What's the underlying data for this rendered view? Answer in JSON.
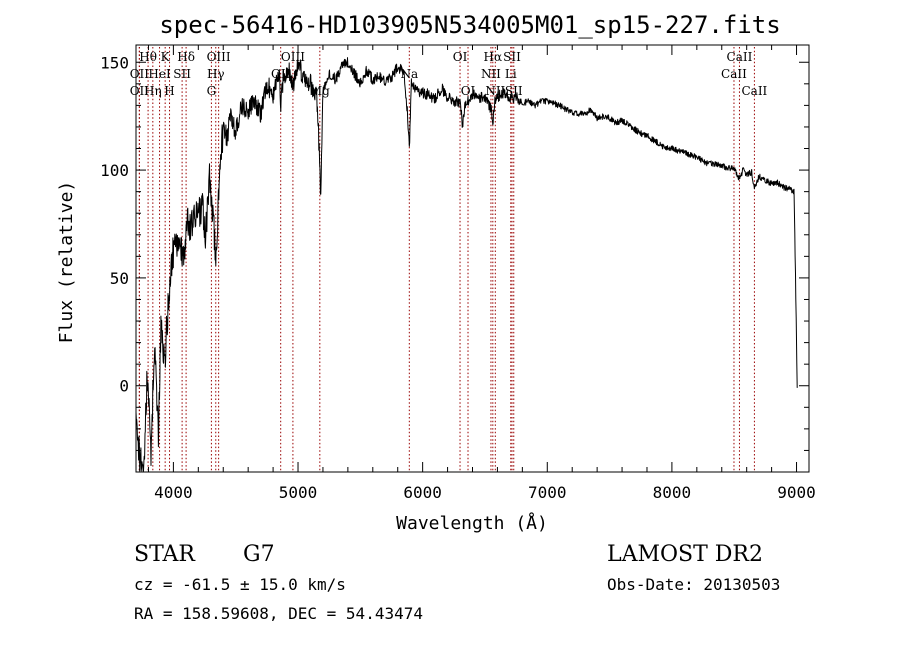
{
  "title": "spec-56416-HD103905N534005M01_sp15-227.fits",
  "chart_data": {
    "type": "line",
    "title": "spec-56416-HD103905N534005M01_sp15-227.fits",
    "xlabel": "Wavelength (Å)",
    "ylabel": "Flux (relative)",
    "xlim": [
      3700,
      9100
    ],
    "ylim": [
      -40,
      158
    ],
    "xticks": [
      4000,
      5000,
      6000,
      7000,
      8000,
      9000
    ],
    "yticks": [
      0,
      50,
      100,
      150
    ],
    "grid": false,
    "series": [
      {
        "x": [
          3700,
          3730,
          3760,
          3790,
          3820,
          3850,
          3880,
          3900,
          3930,
          3960,
          3990,
          4020,
          4050,
          4080,
          4110,
          4140,
          4170,
          4200,
          4230,
          4260,
          4290,
          4320,
          4340,
          4370,
          4400,
          4430,
          4460,
          4500,
          4550,
          4600,
          4650,
          4700,
          4750,
          4800,
          4850,
          4862,
          4880,
          4920,
          4960,
          5000,
          5050,
          5100,
          5150,
          5170,
          5183,
          5200,
          5250,
          5300,
          5350,
          5400,
          5450,
          5500,
          5550,
          5600,
          5650,
          5700,
          5750,
          5800,
          5850,
          5880,
          5893,
          5910,
          5950,
          6000,
          6050,
          6100,
          6150,
          6200,
          6250,
          6300,
          6320,
          6340,
          6400,
          6450,
          6500,
          6550,
          6563,
          6580,
          6600,
          6650,
          6700,
          6750,
          6800,
          6850,
          6900,
          6950,
          7000,
          7050,
          7100,
          7150,
          7200,
          7250,
          7300,
          7350,
          7400,
          7450,
          7500,
          7550,
          7600,
          7650,
          7700,
          7750,
          7800,
          7850,
          7900,
          7950,
          8000,
          8050,
          8100,
          8150,
          8200,
          8250,
          8300,
          8350,
          8400,
          8450,
          8498,
          8520,
          8542,
          8570,
          8600,
          8640,
          8662,
          8700,
          8750,
          8800,
          8850,
          8900,
          8950,
          8980,
          9000,
          9005
        ],
        "y": [
          -10,
          -35,
          -40,
          5,
          -30,
          20,
          -25,
          30,
          10,
          40,
          60,
          65,
          70,
          58,
          75,
          72,
          80,
          78,
          85,
          70,
          95,
          80,
          55,
          100,
          120,
          115,
          125,
          118,
          130,
          128,
          132,
          126,
          140,
          135,
          145,
          130,
          142,
          148,
          138,
          150,
          142,
          140,
          135,
          110,
          85,
          138,
          145,
          142,
          148,
          150,
          145,
          140,
          146,
          142,
          144,
          140,
          143,
          148,
          146,
          125,
          110,
          140,
          137,
          136,
          135,
          133,
          138,
          134,
          131,
          132,
          120,
          130,
          135,
          134,
          133,
          128,
          122,
          132,
          134,
          136,
          133,
          134,
          131,
          132,
          130,
          132,
          132,
          131,
          130,
          128,
          127,
          126,
          126,
          128,
          124,
          125,
          124,
          122,
          123,
          121,
          119,
          117,
          116,
          114,
          112,
          110,
          110,
          109,
          108,
          107,
          106,
          104,
          103,
          103,
          102,
          101,
          101,
          98,
          96,
          100,
          98,
          99,
          92,
          97,
          95,
          94,
          94,
          92,
          91,
          90,
          22,
          -1
        ]
      }
    ],
    "spectral_lines": [
      {
        "label": "OII",
        "x": 3727,
        "row": 2
      },
      {
        "label": "Hθ",
        "x": 3797,
        "row": 1
      },
      {
        "label": "OII",
        "x": 3727,
        "row": 3
      },
      {
        "label": "Hη",
        "x": 3835,
        "row": 3
      },
      {
        "label": "HeI",
        "x": 3889,
        "row": 2
      },
      {
        "label": "K",
        "x": 3934,
        "row": 1
      },
      {
        "label": "H",
        "x": 3969,
        "row": 3
      },
      {
        "label": "SII",
        "x": 4070,
        "row": 2
      },
      {
        "label": "Hδ",
        "x": 4102,
        "row": 1
      },
      {
        "label": "G",
        "x": 4305,
        "row": 3
      },
      {
        "label": "Hγ",
        "x": 4340,
        "row": 2
      },
      {
        "label": "OIII",
        "x": 4363,
        "row": 1
      },
      {
        "label": "OII",
        "x": 4861,
        "row": 2
      },
      {
        "label": "OIII",
        "x": 4959,
        "row": 1
      },
      {
        "label": "Mg",
        "x": 5175,
        "row": 3
      },
      {
        "label": "Na",
        "x": 5893,
        "row": 2
      },
      {
        "label": "OI",
        "x": 6300,
        "row": 1
      },
      {
        "label": "OI",
        "x": 6364,
        "row": 3
      },
      {
        "label": "NII",
        "x": 6548,
        "row": 2
      },
      {
        "label": "Hα",
        "x": 6563,
        "row": 1
      },
      {
        "label": "NII",
        "x": 6583,
        "row": 3
      },
      {
        "label": "SII",
        "x": 6717,
        "row": 1
      },
      {
        "label": "Li",
        "x": 6707,
        "row": 2
      },
      {
        "label": "SII",
        "x": 6731,
        "row": 3
      },
      {
        "label": "CaII",
        "x": 8498,
        "row": 2
      },
      {
        "label": "CaII",
        "x": 8542,
        "row": 1
      },
      {
        "label": "CaII",
        "x": 8662,
        "row": 3
      }
    ]
  },
  "info": {
    "object_class": "STAR",
    "subclass": "G7",
    "survey": "LAMOST DR2",
    "redshift": "cz = -61.5 ± 15.0 km/s",
    "obs_date": "Obs-Date: 20130503",
    "coords": "RA = 158.59608, DEC =  54.43474"
  },
  "colors": {
    "spectrum": "#000000",
    "line_marker": "#990000",
    "frame": "#000000"
  }
}
